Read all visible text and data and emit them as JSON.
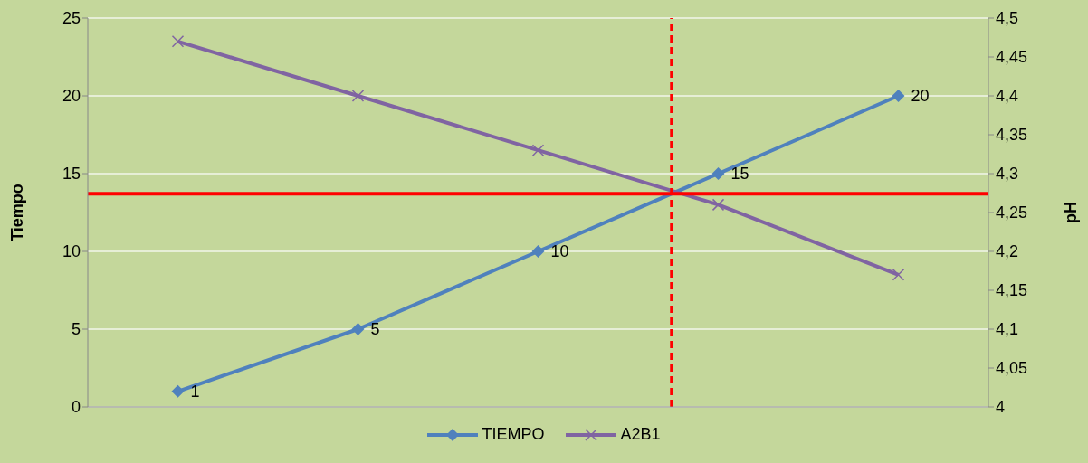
{
  "chart_data": {
    "type": "line",
    "ylabel": "Tiempo",
    "y2label": "pH",
    "categories": [
      null,
      null,
      null,
      null,
      null
    ],
    "ylim": [
      0,
      25
    ],
    "yticks": [
      0,
      5,
      10,
      15,
      20,
      25
    ],
    "y2lim": [
      4,
      4.5
    ],
    "y2ticks": [
      {
        "value": 4,
        "label": "4"
      },
      {
        "value": 4.05,
        "label": "4,05"
      },
      {
        "value": 4.1,
        "label": "4,1"
      },
      {
        "value": 4.15,
        "label": "4,15"
      },
      {
        "value": 4.2,
        "label": "4,2"
      },
      {
        "value": 4.25,
        "label": "4,25"
      },
      {
        "value": 4.3,
        "label": "4,3"
      },
      {
        "value": 4.35,
        "label": "4,35"
      },
      {
        "value": 4.4,
        "label": "4,4"
      },
      {
        "value": 4.45,
        "label": "4,45"
      },
      {
        "value": 4.5,
        "label": "4,5"
      }
    ],
    "tick_labels": "y",
    "grid": "y",
    "legend": "bottom",
    "series": [
      {
        "name": "TIEMPO",
        "color": "#4f81bd",
        "marker": "diamond",
        "values": [
          1,
          5,
          10,
          15,
          20
        ],
        "value_labels": [
          "1",
          "5",
          "10",
          "15",
          "20"
        ]
      },
      {
        "name": "A2B1",
        "color": "#8064a2",
        "marker": "cross",
        "axis": "y2",
        "values": [
          4.47,
          4.4,
          4.33,
          4.26,
          4.17
        ]
      }
    ],
    "ref_lines": [
      {
        "axis": "y",
        "value": 13.7,
        "color": "#ff0000",
        "line_style": "solid"
      }
    ]
  }
}
